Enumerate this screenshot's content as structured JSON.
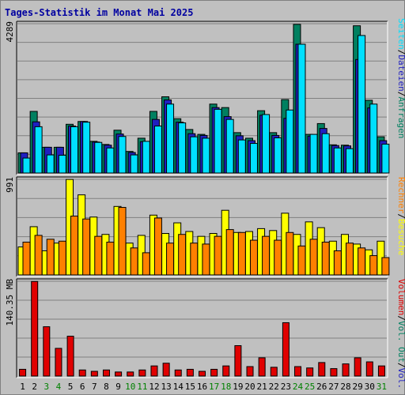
{
  "title": "Tages-Statistik im Monat Mai 2025",
  "colors": {
    "background": "#c0c0c0",
    "title": "#0000a0",
    "anfragen": "#008060",
    "dateien": "#2020c0",
    "seiten": "#00e0ff",
    "besuche": "#ffff00",
    "rechner": "#ff8000",
    "volumen": "#e00000",
    "weekend_day": "#008000",
    "weekday": "#000000"
  },
  "legend": {
    "top": [
      {
        "text": "Anfragen",
        "color": "#008060"
      },
      {
        "text": "Dateien",
        "color": "#2020c0"
      },
      {
        "text": "Seiten",
        "color": "#00e0ff"
      }
    ],
    "mid": [
      {
        "text": "Besuche",
        "color": "#ffff00"
      },
      {
        "text": "Rechner",
        "color": "#ff8000"
      }
    ],
    "bottom": [
      {
        "text": "Vol. In",
        "color": "#2020c0"
      },
      {
        "text": "Vol. Out",
        "color": "#008060"
      },
      {
        "text": "Volumen",
        "color": "#e00000"
      }
    ],
    "separator": "/"
  },
  "chart_data": [
    {
      "type": "bar",
      "panel": "hits",
      "axis_max_label": "4289",
      "ylim": [
        0,
        4289
      ],
      "categories": [
        "1",
        "2",
        "3",
        "4",
        "5",
        "6",
        "7",
        "8",
        "9",
        "10",
        "11",
        "12",
        "13",
        "14",
        "15",
        "16",
        "17",
        "18",
        "19",
        "20",
        "21",
        "22",
        "23",
        "24",
        "25",
        "26",
        "27",
        "28",
        "29",
        "30",
        "31"
      ],
      "weekend": [
        "3",
        "4",
        "10",
        "11",
        "17",
        "18",
        "24",
        "25",
        "31"
      ],
      "series": [
        {
          "name": "Anfragen",
          "values": [
            580,
            1770,
            740,
            740,
            1400,
            1480,
            910,
            820,
            1230,
            620,
            1000,
            1770,
            2190,
            1560,
            1250,
            1110,
            1980,
            1880,
            1160,
            1000,
            1790,
            1160,
            2110,
            4270,
            1110,
            1420,
            810,
            800,
            4230,
            2090,
            1040
          ]
        },
        {
          "name": "Dateien",
          "values": [
            580,
            1470,
            740,
            740,
            1350,
            1480,
            890,
            800,
            1120,
            590,
            900,
            1540,
            2100,
            1460,
            1130,
            1080,
            1880,
            1620,
            1070,
            930,
            1660,
            1080,
            1570,
            3700,
            1060,
            1280,
            790,
            780,
            3260,
            1870,
            930
          ]
        },
        {
          "name": "Seiten",
          "values": [
            430,
            1330,
            520,
            510,
            1330,
            1460,
            880,
            720,
            1050,
            520,
            910,
            1350,
            1980,
            1440,
            1040,
            1000,
            1830,
            1540,
            950,
            850,
            1680,
            1010,
            1810,
            3700,
            1110,
            1130,
            720,
            700,
            3950,
            1980,
            830
          ]
        }
      ]
    },
    {
      "type": "bar",
      "panel": "visits",
      "axis_max_label": "991",
      "ylim": [
        0,
        991
      ],
      "categories": [
        "1",
        "2",
        "3",
        "4",
        "5",
        "6",
        "7",
        "8",
        "9",
        "10",
        "11",
        "12",
        "13",
        "14",
        "15",
        "16",
        "17",
        "18",
        "19",
        "20",
        "21",
        "22",
        "23",
        "24",
        "25",
        "26",
        "27",
        "28",
        "29",
        "30",
        "31"
      ],
      "series": [
        {
          "name": "Besuche",
          "values": [
            290,
            500,
            250,
            330,
            990,
            830,
            600,
            420,
            710,
            330,
            410,
            620,
            430,
            540,
            450,
            400,
            430,
            670,
            440,
            450,
            480,
            460,
            640,
            420,
            550,
            490,
            350,
            420,
            320,
            260,
            350
          ]
        },
        {
          "name": "Rechner",
          "values": [
            340,
            410,
            370,
            350,
            610,
            580,
            400,
            340,
            700,
            280,
            230,
            590,
            330,
            420,
            330,
            320,
            400,
            470,
            440,
            360,
            400,
            360,
            440,
            300,
            370,
            340,
            250,
            330,
            280,
            200,
            180
          ]
        }
      ]
    },
    {
      "type": "bar",
      "panel": "volume",
      "axis_max_label": "140.35 MB",
      "unit": "MB",
      "ylim": [
        0,
        140.35
      ],
      "categories": [
        "1",
        "2",
        "3",
        "4",
        "5",
        "6",
        "7",
        "8",
        "9",
        "10",
        "11",
        "12",
        "13",
        "14",
        "15",
        "16",
        "17",
        "18",
        "19",
        "20",
        "21",
        "22",
        "23",
        "24",
        "25",
        "26",
        "27",
        "28",
        "29",
        "30",
        "31"
      ],
      "series": [
        {
          "name": "Volumen",
          "values": [
            10,
            140,
            73,
            41,
            59,
            9,
            7,
            9,
            6,
            6,
            9,
            15,
            19,
            9,
            10,
            7,
            10,
            15,
            45,
            14,
            27,
            13,
            79,
            14,
            12,
            20,
            11,
            18,
            27,
            21,
            15
          ]
        }
      ]
    }
  ]
}
